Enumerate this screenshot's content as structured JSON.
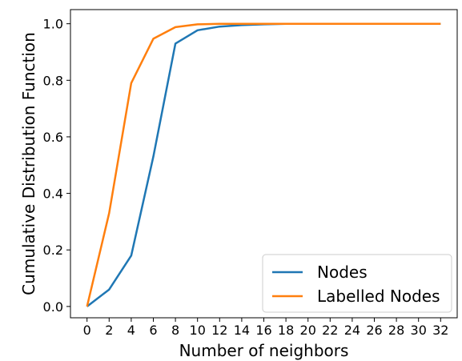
{
  "chart_data": {
    "type": "line",
    "xlabel": "Number of neighbors",
    "ylabel": "Cumulative Distribution Function",
    "xlim": [
      -1.5,
      33.5
    ],
    "ylim": [
      -0.04,
      1.05
    ],
    "xticks": [
      0,
      2,
      4,
      6,
      8,
      10,
      12,
      14,
      16,
      18,
      20,
      22,
      24,
      26,
      28,
      30,
      32
    ],
    "yticks": [
      0.0,
      0.2,
      0.4,
      0.6,
      0.8,
      1.0
    ],
    "ytick_labels": [
      "0.0",
      "0.2",
      "0.4",
      "0.6",
      "0.8",
      "1.0"
    ],
    "grid": false,
    "legend_position": "bottom-right",
    "series": [
      {
        "name": "Nodes",
        "color": "#1f77b4",
        "x": [
          0,
          2,
          4,
          6,
          8,
          10,
          12,
          14,
          16,
          18,
          20,
          22,
          24,
          26,
          28,
          30,
          32
        ],
        "y": [
          0.0,
          0.06,
          0.18,
          0.53,
          0.93,
          0.977,
          0.99,
          0.995,
          0.998,
          1.0,
          1.0,
          1.0,
          1.0,
          1.0,
          1.0,
          1.0,
          1.0
        ]
      },
      {
        "name": "Labelled Nodes",
        "color": "#ff7f0e",
        "x": [
          0,
          2,
          4,
          6,
          8,
          10,
          12,
          14,
          16,
          18,
          20,
          22,
          24,
          26,
          28,
          30,
          32
        ],
        "y": [
          0.0,
          0.33,
          0.79,
          0.947,
          0.988,
          0.998,
          1.0,
          1.0,
          1.0,
          1.0,
          1.0,
          1.0,
          1.0,
          1.0,
          1.0,
          1.0,
          1.0
        ]
      }
    ]
  }
}
